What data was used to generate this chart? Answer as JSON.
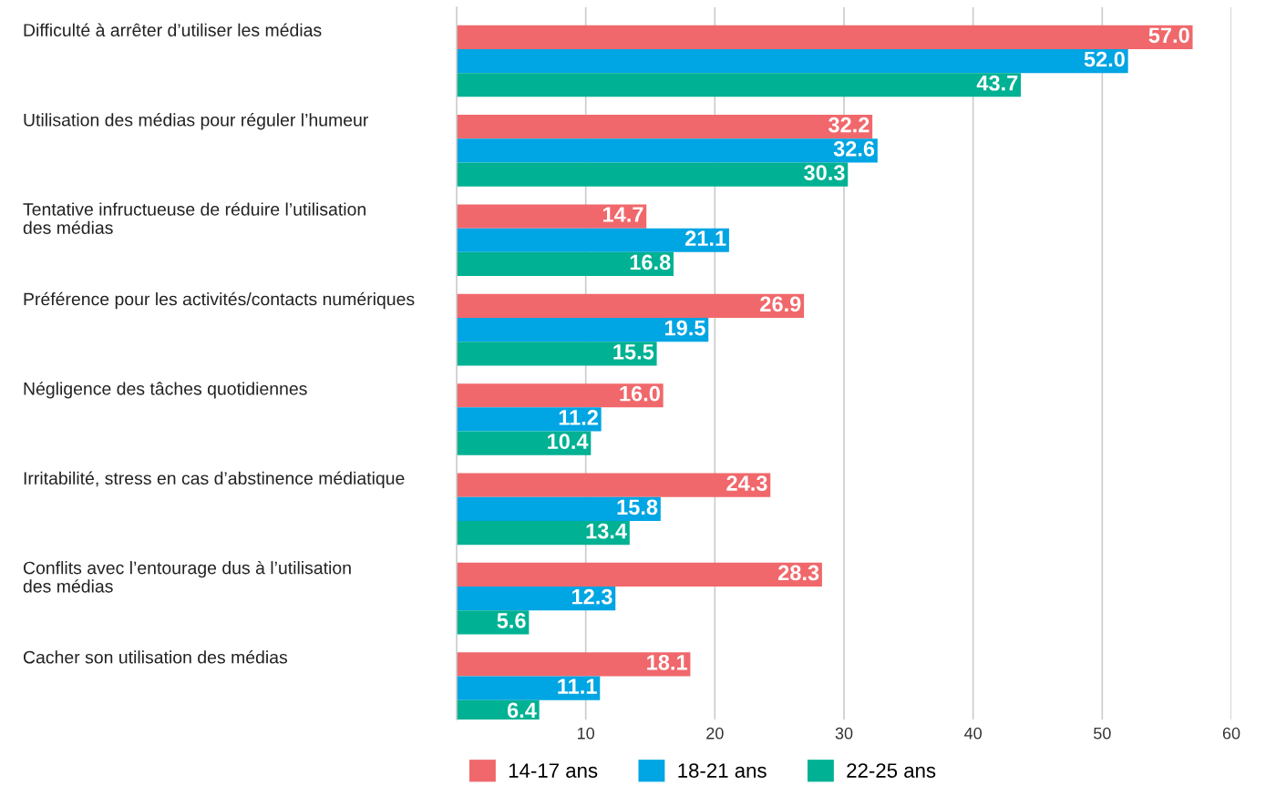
{
  "chart_data": {
    "type": "bar",
    "orientation": "horizontal",
    "categories": [
      "Difficulté à arrêter d’utiliser les médias",
      "Utilisation des médias pour réguler l’humeur",
      "Tentative infructueuse de réduire l’utilisation\ndes médias",
      "Préférence pour les activités/contacts numériques",
      "Négligence des tâches quotidiennes",
      "Irritabilité, stress en cas d’abstinence médiatique",
      "Conflits avec l’entourage dus à l’utilisation\ndes médias",
      "Cacher son utilisation des médias"
    ],
    "series": [
      {
        "name": "14-17 ans",
        "color": "#f0686b",
        "values": [
          57.0,
          32.2,
          14.7,
          26.9,
          16.0,
          24.3,
          28.3,
          18.1
        ],
        "value_labels": [
          "57.0",
          "32.2",
          "14.7",
          "26.9",
          "16.0",
          "24.3",
          "28.3",
          "18.1"
        ]
      },
      {
        "name": "18-21 ans",
        "color": "#00a5e3",
        "values": [
          52.0,
          32.6,
          21.1,
          19.5,
          11.2,
          15.8,
          12.3,
          11.1
        ],
        "value_labels": [
          "52.0",
          "32.6",
          "21.1",
          "19.5",
          "11.2",
          "15.8",
          "12.3",
          "11.1"
        ]
      },
      {
        "name": "22-25 ans",
        "color": "#00b193",
        "values": [
          43.7,
          30.3,
          16.8,
          15.5,
          10.4,
          13.4,
          5.6,
          6.4
        ],
        "value_labels": [
          "43.7",
          "30.3",
          "16.8",
          "15.5",
          "10.4",
          "13.4",
          "5.6",
          "6.4"
        ]
      }
    ],
    "xlim": [
      0,
      60
    ],
    "xticks": [
      10,
      20,
      30,
      40,
      50,
      60
    ],
    "grid": "x",
    "legend": "bottom"
  }
}
